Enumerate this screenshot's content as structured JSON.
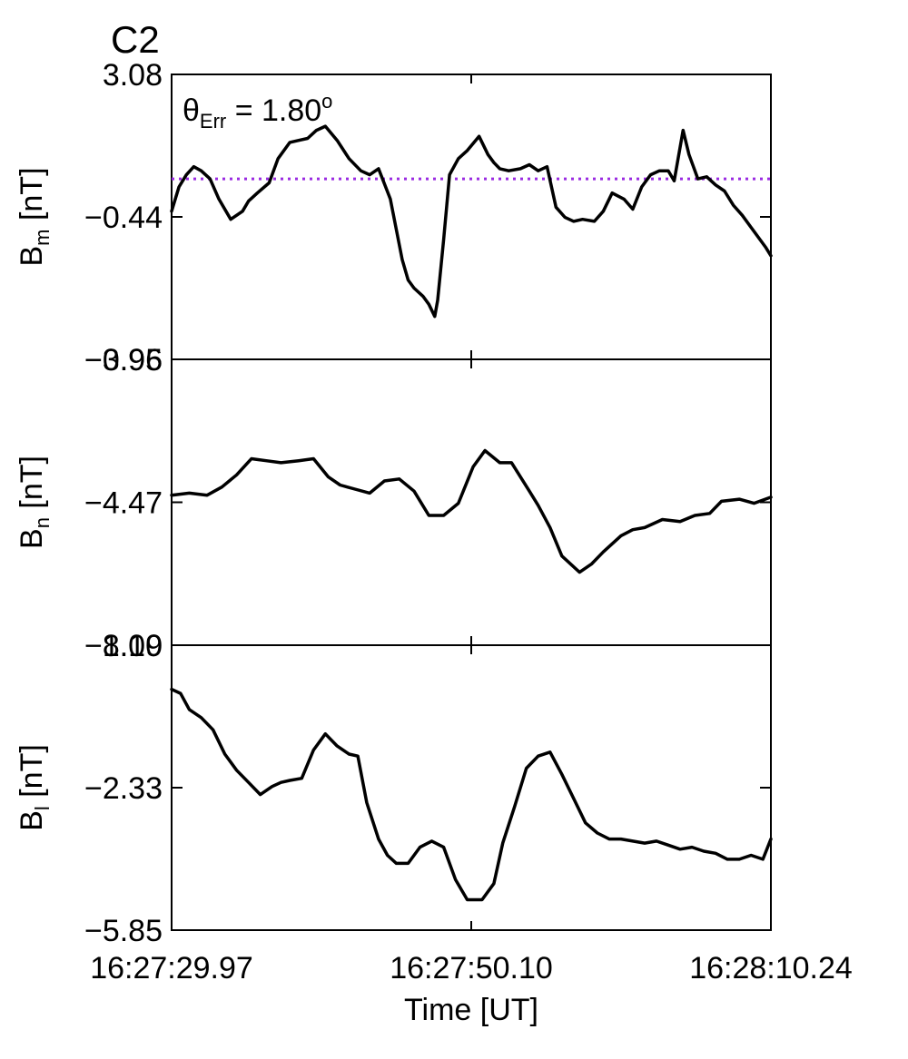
{
  "title": "C2",
  "title_color": "#e00000",
  "xlabel": "Time [UT]",
  "x_ticks": [
    "16:27:29.97",
    "16:27:50.10",
    "16:28:10.24"
  ],
  "annotation": {
    "theta": "θ",
    "subscript": "Err",
    "equals": " =  1.80",
    "degree": "o"
  },
  "reference_line_color": "#9a2be2",
  "chart_data": [
    {
      "type": "line",
      "panel": "Bm",
      "ylabel_main": "B",
      "ylabel_sub": "m",
      "ylabel_unit": " [nT]",
      "yticks": [
        "3.08",
        "-0.44",
        "-3.96"
      ],
      "ylim": [
        -3.96,
        3.08
      ],
      "xlim": [
        0,
        20.27
      ],
      "reference_line": 0.5,
      "x": [
        0,
        0.25,
        0.5,
        0.75,
        1.0,
        1.3,
        1.6,
        2.0,
        2.4,
        2.6,
        2.9,
        3.3,
        3.6,
        4.0,
        4.3,
        4.6,
        4.9,
        5.2,
        5.6,
        6.0,
        6.4,
        6.7,
        7.0,
        7.4,
        7.8,
        8.0,
        8.2,
        8.5,
        8.7,
        8.9,
        9.0,
        9.2,
        9.4,
        9.7,
        10.0,
        10.4,
        10.7,
        10.9,
        11.1,
        11.4,
        11.8,
        12.1,
        12.4,
        12.7,
        13.0,
        13.3,
        13.6,
        13.9,
        14.3,
        14.6,
        14.9,
        15.3,
        15.6,
        15.9,
        16.2,
        16.5,
        16.8,
        17.0,
        17.3,
        17.5,
        17.8,
        18.1,
        18.4,
        18.7,
        19.0,
        19.3,
        19.6,
        19.9,
        20.1,
        20.27
      ],
      "y": [
        -0.3,
        0.3,
        0.6,
        0.8,
        0.7,
        0.5,
        0.0,
        -0.5,
        -0.3,
        -0.05,
        0.15,
        0.4,
        1.0,
        1.4,
        1.45,
        1.5,
        1.7,
        1.8,
        1.45,
        1.0,
        0.7,
        0.6,
        0.75,
        0.0,
        -1.5,
        -2.0,
        -2.2,
        -2.4,
        -2.6,
        -2.9,
        -2.5,
        -1.0,
        0.6,
        1.0,
        1.2,
        1.55,
        1.1,
        0.9,
        0.75,
        0.7,
        0.75,
        0.85,
        0.7,
        0.8,
        -0.2,
        -0.45,
        -0.55,
        -0.5,
        -0.55,
        -0.3,
        0.15,
        0.0,
        -0.25,
        0.3,
        0.6,
        0.7,
        0.7,
        0.45,
        1.7,
        1.1,
        0.5,
        0.55,
        0.35,
        0.2,
        -0.15,
        -0.4,
        -0.7,
        -1.0,
        -1.2,
        -1.4
      ]
    },
    {
      "type": "line",
      "panel": "Bn",
      "ylabel_main": "B",
      "ylabel_sub": "n",
      "ylabel_unit": " [nT]",
      "yticks": [
        "-0.95",
        "-4.47",
        "-8.00"
      ],
      "ylim": [
        -8.0,
        -0.95
      ],
      "xlim": [
        0,
        20.27
      ],
      "x": [
        0,
        0.6,
        1.2,
        1.7,
        2.2,
        2.7,
        3.2,
        3.7,
        4.3,
        4.8,
        5.3,
        5.7,
        6.2,
        6.7,
        7.2,
        7.7,
        8.2,
        8.7,
        9.2,
        9.7,
        10.2,
        10.6,
        11.1,
        11.5,
        12.1,
        12.4,
        12.8,
        13.2,
        13.8,
        14.2,
        14.6,
        15.2,
        15.6,
        16.0,
        16.6,
        17.2,
        17.7,
        18.2,
        18.6,
        19.2,
        19.7,
        20.27
      ],
      "y": [
        -4.3,
        -4.25,
        -4.3,
        -4.1,
        -3.8,
        -3.4,
        -3.45,
        -3.5,
        -3.45,
        -3.4,
        -3.85,
        -4.05,
        -4.15,
        -4.25,
        -3.95,
        -3.9,
        -4.2,
        -4.8,
        -4.8,
        -4.5,
        -3.6,
        -3.2,
        -3.5,
        -3.5,
        -4.2,
        -4.55,
        -5.1,
        -5.8,
        -6.2,
        -6.0,
        -5.7,
        -5.3,
        -5.15,
        -5.1,
        -4.9,
        -4.95,
        -4.8,
        -4.75,
        -4.45,
        -4.4,
        -4.5,
        -4.35
      ]
    },
    {
      "type": "line",
      "panel": "Bl",
      "ylabel_main": "B",
      "ylabel_sub": "l",
      "ylabel_unit": " [nT]",
      "yticks": [
        "1.19",
        "-2.33",
        "-5.85"
      ],
      "ylim": [
        -5.85,
        1.19
      ],
      "xlim": [
        0,
        20.27
      ],
      "x": [
        0,
        0.3,
        0.6,
        1.0,
        1.4,
        1.8,
        2.2,
        2.6,
        3.0,
        3.4,
        3.7,
        4.0,
        4.4,
        4.8,
        5.2,
        5.6,
        6.0,
        6.3,
        6.6,
        7.0,
        7.3,
        7.6,
        8.0,
        8.4,
        8.8,
        9.2,
        9.6,
        10.0,
        10.5,
        10.9,
        11.2,
        11.6,
        12.0,
        12.4,
        12.8,
        13.2,
        13.6,
        14.0,
        14.4,
        14.8,
        15.2,
        15.6,
        16.0,
        16.4,
        16.8,
        17.2,
        17.6,
        18.0,
        18.4,
        18.8,
        19.2,
        19.6,
        20.0,
        20.27
      ],
      "y": [
        0.1,
        0.0,
        -0.4,
        -0.6,
        -0.9,
        -1.5,
        -1.9,
        -2.2,
        -2.5,
        -2.3,
        -2.2,
        -2.15,
        -2.1,
        -1.4,
        -1.0,
        -1.3,
        -1.5,
        -1.55,
        -2.7,
        -3.6,
        -4.0,
        -4.2,
        -4.2,
        -3.8,
        -3.65,
        -3.8,
        -4.6,
        -5.1,
        -5.1,
        -4.7,
        -3.7,
        -2.8,
        -1.85,
        -1.55,
        -1.45,
        -2.0,
        -2.6,
        -3.2,
        -3.45,
        -3.6,
        -3.6,
        -3.65,
        -3.7,
        -3.65,
        -3.75,
        -3.85,
        -3.8,
        -3.9,
        -3.95,
        -4.1,
        -4.1,
        -4.0,
        -4.1,
        -3.6
      ]
    }
  ]
}
